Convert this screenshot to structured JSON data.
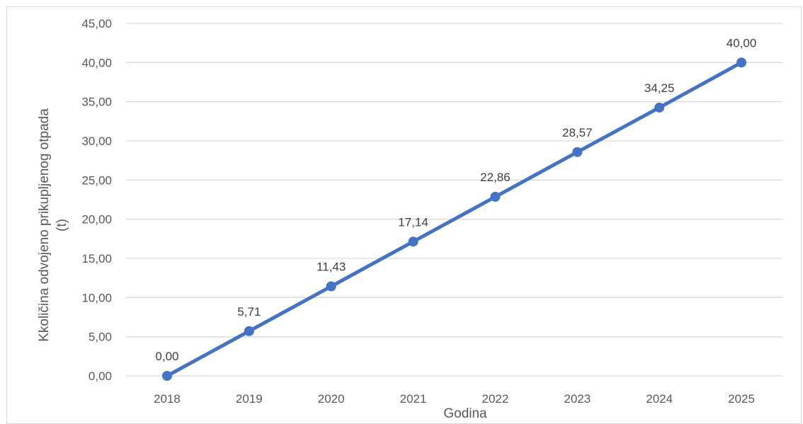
{
  "chart_data": {
    "type": "line",
    "title": "",
    "xlabel": "Godina",
    "ylabel_lines": [
      "Kkoličina odvojeno prikupljenog otpada",
      "(t)"
    ],
    "categories": [
      "2018",
      "2019",
      "2020",
      "2021",
      "2022",
      "2023",
      "2024",
      "2025"
    ],
    "series": [
      {
        "values": [
          0.0,
          5.71,
          11.43,
          17.14,
          22.86,
          28.57,
          34.25,
          40.0
        ],
        "labels": [
          "0,00",
          "5,71",
          "11,43",
          "17,14",
          "22,86",
          "28,57",
          "34,25",
          "40,00"
        ],
        "color": "#4472c4"
      }
    ],
    "ylim": [
      0,
      45
    ],
    "yticks": [
      0,
      5,
      10,
      15,
      20,
      25,
      30,
      35,
      40,
      45
    ],
    "ytick_labels": [
      "0,00",
      "5,00",
      "10,00",
      "15,00",
      "20,00",
      "25,00",
      "30,00",
      "35,00",
      "40,00",
      "45,00"
    ],
    "grid": true,
    "legend": "none",
    "colors": {
      "line": "#4472c4",
      "grid": "#d9d9d9",
      "text": "#595959",
      "data_label": "#404040"
    }
  }
}
